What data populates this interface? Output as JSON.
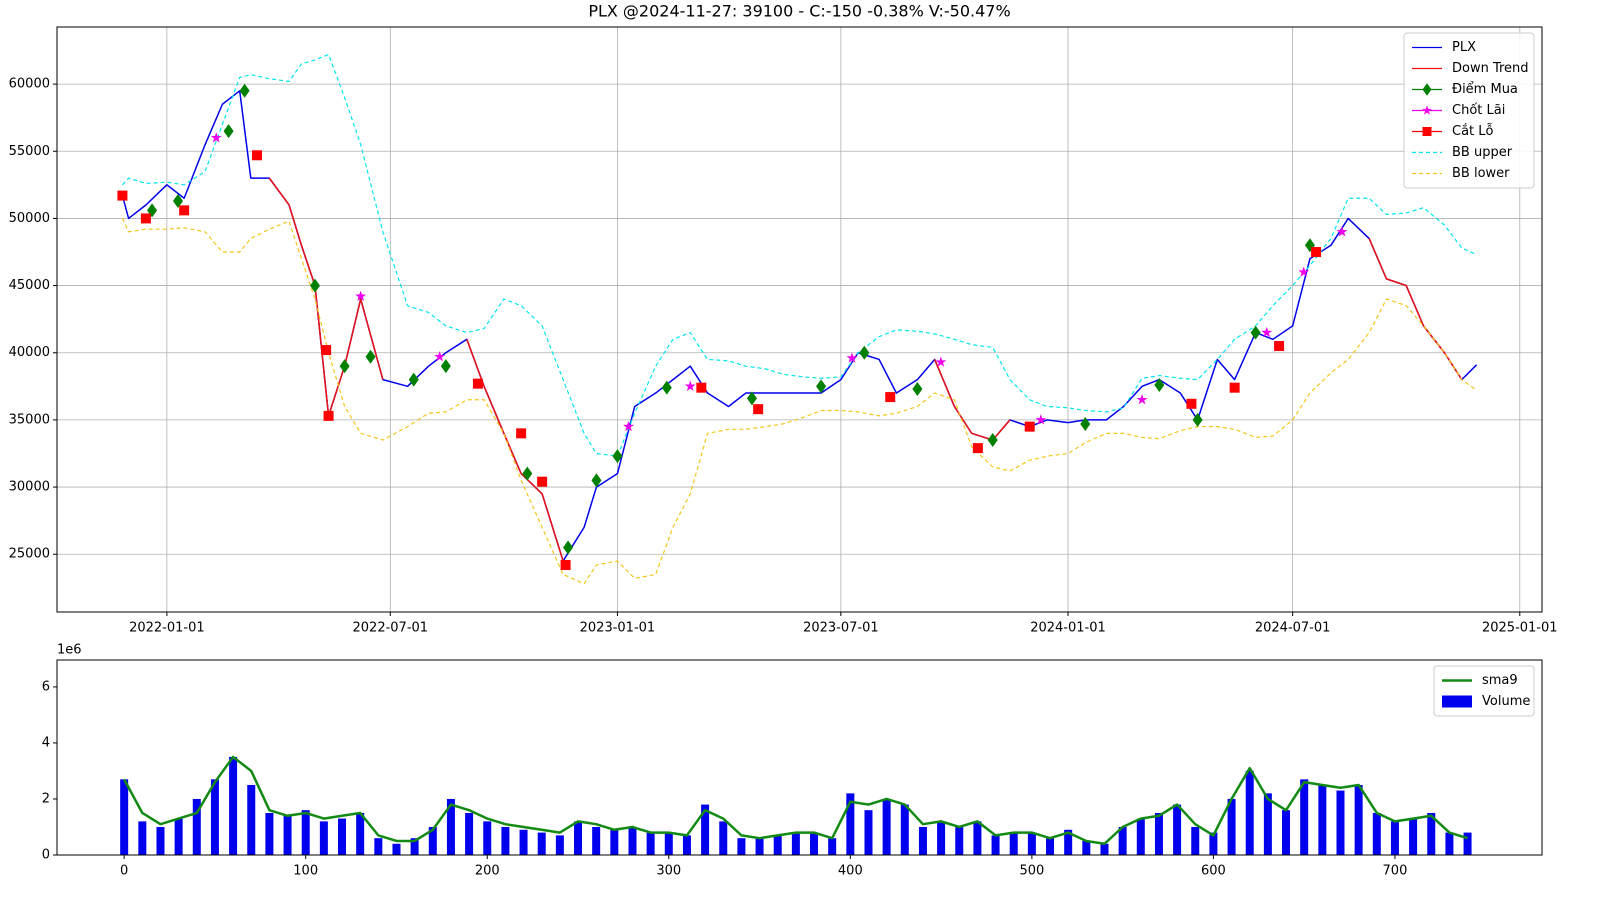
{
  "chart_data": [
    {
      "type": "line",
      "title": "PLX @2024-11-27: 39100 - C:-150 -0.38% V:-50.47%",
      "x": [
        "2021-11-26",
        "2021-12-01",
        "2021-12-15",
        "2022-01-01",
        "2022-01-15",
        "2022-02-01",
        "2022-02-15",
        "2022-03-01",
        "2022-03-10",
        "2022-03-25",
        "2022-04-10",
        "2022-04-20",
        "2022-05-01",
        "2022-05-12",
        "2022-05-25",
        "2022-06-07",
        "2022-06-25",
        "2022-07-15",
        "2022-08-01",
        "2022-08-15",
        "2022-09-01",
        "2022-09-15",
        "2022-10-01",
        "2022-10-15",
        "2022-11-01",
        "2022-11-18",
        "2022-12-05",
        "2022-12-15",
        "2023-01-01",
        "2023-01-15",
        "2023-02-01",
        "2023-02-15",
        "2023-03-01",
        "2023-03-15",
        "2023-04-01",
        "2023-04-15",
        "2023-05-01",
        "2023-05-15",
        "2023-06-01",
        "2023-06-15",
        "2023-07-01",
        "2023-07-15",
        "2023-08-01",
        "2023-08-15",
        "2023-09-01",
        "2023-09-15",
        "2023-10-01",
        "2023-10-15",
        "2023-11-01",
        "2023-11-15",
        "2023-12-01",
        "2023-12-15",
        "2024-01-01",
        "2024-01-15",
        "2024-02-01",
        "2024-02-15",
        "2024-03-01",
        "2024-03-15",
        "2024-04-01",
        "2024-04-15",
        "2024-05-01",
        "2024-05-15",
        "2024-06-01",
        "2024-06-15",
        "2024-07-01",
        "2024-07-15",
        "2024-08-01",
        "2024-08-15",
        "2024-09-01",
        "2024-09-15",
        "2024-10-01",
        "2024-10-15",
        "2024-11-01",
        "2024-11-15",
        "2024-11-27"
      ],
      "series": [
        {
          "name": "PLX",
          "color": "#0000ee",
          "values": [
            51700,
            50000,
            51000,
            52500,
            51500,
            55500,
            58500,
            59500,
            53000,
            53000,
            51000,
            48000,
            45000,
            35300,
            39000,
            44000,
            38000,
            37500,
            39000,
            40000,
            41000,
            37500,
            34000,
            31000,
            29500,
            24500,
            27000,
            30000,
            31000,
            36000,
            37000,
            38000,
            39000,
            37000,
            36000,
            37000,
            37000,
            37000,
            37000,
            37000,
            38000,
            40000,
            39500,
            37000,
            38000,
            39500,
            36000,
            34000,
            33500,
            35000,
            34500,
            35000,
            34800,
            35000,
            35000,
            36000,
            37500,
            38000,
            37000,
            35000,
            39500,
            38000,
            41500,
            41000,
            42000,
            47000,
            48000,
            50000,
            48500,
            45500,
            45000,
            42000,
            40000,
            38000,
            39100
          ]
        },
        {
          "name": "Down Trend",
          "color": "#ee1111",
          "values": [
            null,
            null,
            null,
            null,
            null,
            null,
            null,
            null,
            null,
            53000,
            51000,
            48000,
            45000,
            35300,
            39000,
            44000,
            38000,
            null,
            null,
            null,
            41000,
            37500,
            34000,
            31000,
            29500,
            24500,
            null,
            null,
            null,
            null,
            null,
            null,
            null,
            null,
            null,
            null,
            null,
            null,
            null,
            null,
            null,
            null,
            null,
            null,
            null,
            39500,
            36000,
            34000,
            33500,
            35000,
            null,
            null,
            null,
            null,
            null,
            null,
            null,
            null,
            null,
            null,
            null,
            null,
            null,
            null,
            null,
            null,
            null,
            null,
            48500,
            45500,
            45000,
            42000,
            40000,
            38000,
            null
          ]
        },
        {
          "name": "Điểm Mua",
          "color": "#008000",
          "marker": "diamond",
          "x": [
            "2021-12-20",
            "2022-01-10",
            "2022-02-20",
            "2022-03-05",
            "2022-05-01",
            "2022-05-25",
            "2022-06-15",
            "2022-07-20",
            "2022-08-15",
            "2022-10-20",
            "2022-11-22",
            "2022-12-15",
            "2023-01-01",
            "2023-02-10",
            "2023-04-20",
            "2023-06-15",
            "2023-07-20",
            "2023-09-01",
            "2023-11-01",
            "2024-01-15",
            "2024-03-15",
            "2024-04-15",
            "2024-06-01",
            "2024-07-15"
          ],
          "values": [
            50600,
            51300,
            56500,
            59500,
            45000,
            39000,
            39700,
            38000,
            39000,
            31000,
            25500,
            30500,
            32300,
            37400,
            36600,
            37500,
            40000,
            37300,
            33500,
            34700,
            37600,
            35000,
            41500,
            48000
          ]
        },
        {
          "name": "Chốt Lãi",
          "color": "#ee00ee",
          "marker": "star",
          "x": [
            "2022-02-10",
            "2022-06-07",
            "2022-08-10",
            "2023-01-10",
            "2023-03-01",
            "2023-07-10",
            "2023-09-20",
            "2023-12-10",
            "2024-03-01",
            "2024-06-10",
            "2024-07-10",
            "2024-08-10"
          ],
          "values": [
            56000,
            44200,
            39700,
            34500,
            37500,
            39600,
            39300,
            35000,
            36500,
            41500,
            46000,
            49000
          ]
        },
        {
          "name": "Cắt Lỗ",
          "color": "#ff0000",
          "marker": "square",
          "x": [
            "2021-11-26",
            "2021-12-15",
            "2022-01-15",
            "2022-03-15",
            "2022-05-10",
            "2022-05-12",
            "2022-09-10",
            "2022-10-15",
            "2022-11-01",
            "2022-11-20",
            "2023-03-10",
            "2023-04-25",
            "2023-08-10",
            "2023-10-20",
            "2023-12-01",
            "2024-04-10",
            "2024-05-15",
            "2024-06-20",
            "2024-07-20"
          ],
          "values": [
            51700,
            50000,
            50600,
            54700,
            40200,
            35300,
            37700,
            34000,
            30400,
            24200,
            37400,
            35800,
            36700,
            32900,
            34500,
            36200,
            37400,
            40500,
            47500
          ]
        },
        {
          "name": "BB upper",
          "color": "#00e5ee",
          "dash": true,
          "values": [
            52500,
            53000,
            52600,
            52700,
            52500,
            53500,
            57000,
            60500,
            60700,
            60400,
            60200,
            61500,
            61800,
            62200,
            59000,
            55500,
            49000,
            43500,
            43000,
            42000,
            41500,
            41800,
            44000,
            43500,
            42000,
            38000,
            34000,
            32500,
            32300,
            35500,
            39000,
            41000,
            41500,
            39500,
            39400,
            39000,
            38800,
            38400,
            38200,
            38100,
            38200,
            40000,
            41200,
            41700,
            41600,
            41400,
            41000,
            40600,
            40400,
            38000,
            36500,
            36000,
            35900,
            35700,
            35600,
            35900,
            38100,
            38300,
            38100,
            38000,
            39500,
            41000,
            42000,
            43500,
            45000,
            46500,
            48500,
            51500,
            51500,
            50300,
            50400,
            50800,
            49500,
            47800,
            47300
          ]
        },
        {
          "name": "BB lower",
          "color": "#f5c518",
          "dash": true,
          "values": [
            50000,
            49000,
            49200,
            49200,
            49300,
            49000,
            47500,
            47500,
            48500,
            49200,
            49800,
            47000,
            44000,
            40000,
            36000,
            34000,
            33500,
            34500,
            35500,
            35600,
            36500,
            36500,
            34000,
            30500,
            27000,
            23500,
            22800,
            24200,
            24500,
            23200,
            23500,
            27000,
            29500,
            34000,
            34300,
            34300,
            34500,
            34700,
            35200,
            35700,
            35700,
            35600,
            35300,
            35500,
            36000,
            37000,
            36500,
            33000,
            31500,
            31200,
            32000,
            32300,
            32500,
            33300,
            34000,
            34000,
            33700,
            33600,
            34200,
            34500,
            34500,
            34300,
            33700,
            33800,
            35000,
            37000,
            38500,
            39500,
            41500,
            44000,
            43500,
            42000,
            40000,
            38000,
            37200
          ]
        }
      ],
      "xlim": [
        "2021-10-04",
        "2025-01-19"
      ],
      "xticks": [
        "2022-01-01",
        "2022-07-01",
        "2023-01-01",
        "2023-07-01",
        "2024-01-01",
        "2024-07-01",
        "2025-01-01"
      ],
      "ylim": [
        20700,
        64250
      ],
      "yticks": [
        25000,
        30000,
        35000,
        40000,
        45000,
        50000,
        55000,
        60000
      ],
      "grid": true,
      "legend": "upper right"
    },
    {
      "type": "bar",
      "y_offset_label": "1e6",
      "x": [
        0,
        10,
        20,
        30,
        40,
        50,
        60,
        70,
        80,
        90,
        100,
        110,
        120,
        130,
        140,
        150,
        160,
        170,
        180,
        190,
        200,
        210,
        220,
        230,
        240,
        250,
        260,
        270,
        280,
        290,
        300,
        310,
        320,
        330,
        340,
        350,
        360,
        370,
        380,
        390,
        400,
        410,
        420,
        430,
        440,
        450,
        460,
        470,
        480,
        490,
        500,
        510,
        520,
        530,
        540,
        550,
        560,
        570,
        580,
        590,
        600,
        610,
        620,
        630,
        640,
        650,
        660,
        670,
        680,
        690,
        700,
        710,
        720,
        730,
        740
      ],
      "series": [
        {
          "name": "sma9",
          "type": "line",
          "color": "#138a13",
          "values": [
            2.7,
            1.5,
            1.1,
            1.3,
            1.5,
            2.6,
            3.5,
            3.0,
            1.6,
            1.4,
            1.5,
            1.3,
            1.4,
            1.5,
            0.7,
            0.5,
            0.5,
            0.9,
            1.8,
            1.6,
            1.3,
            1.1,
            1.0,
            0.9,
            0.8,
            1.2,
            1.1,
            0.9,
            1.0,
            0.8,
            0.8,
            0.7,
            1.6,
            1.3,
            0.7,
            0.6,
            0.7,
            0.8,
            0.8,
            0.6,
            1.9,
            1.8,
            2.0,
            1.8,
            1.1,
            1.2,
            1.0,
            1.2,
            0.7,
            0.8,
            0.8,
            0.6,
            0.8,
            0.5,
            0.4,
            1.0,
            1.3,
            1.4,
            1.8,
            1.1,
            0.7,
            2.0,
            3.1,
            2.0,
            1.6,
            2.6,
            2.5,
            2.4,
            2.5,
            1.5,
            1.2,
            1.3,
            1.4,
            0.8,
            0.6
          ]
        },
        {
          "name": "Volume",
          "color": "#0000ee",
          "values": [
            2.7,
            1.2,
            1.0,
            1.3,
            2.0,
            2.7,
            3.5,
            2.5,
            1.5,
            1.4,
            1.6,
            1.2,
            1.3,
            1.5,
            0.6,
            0.4,
            0.6,
            1.0,
            2.0,
            1.5,
            1.2,
            1.0,
            0.9,
            0.8,
            0.7,
            1.2,
            1.0,
            0.9,
            1.0,
            0.8,
            0.8,
            0.7,
            1.8,
            1.2,
            0.6,
            0.6,
            0.7,
            0.8,
            0.8,
            0.6,
            2.2,
            1.6,
            2.0,
            1.8,
            1.0,
            1.2,
            1.0,
            1.2,
            0.7,
            0.8,
            0.8,
            0.6,
            0.9,
            0.5,
            0.4,
            1.0,
            1.3,
            1.5,
            1.8,
            1.0,
            0.8,
            2.0,
            3.0,
            2.2,
            1.6,
            2.7,
            2.5,
            2.3,
            2.5,
            1.5,
            1.2,
            1.3,
            1.5,
            0.8,
            0.8
          ]
        }
      ],
      "xlim": [
        -37,
        781
      ],
      "xticks": [
        0,
        100,
        200,
        300,
        400,
        500,
        600,
        700
      ],
      "ylim": [
        0,
        6.96
      ],
      "yticks": [
        0,
        2,
        4,
        6
      ],
      "grid": false,
      "legend": "upper right"
    }
  ]
}
